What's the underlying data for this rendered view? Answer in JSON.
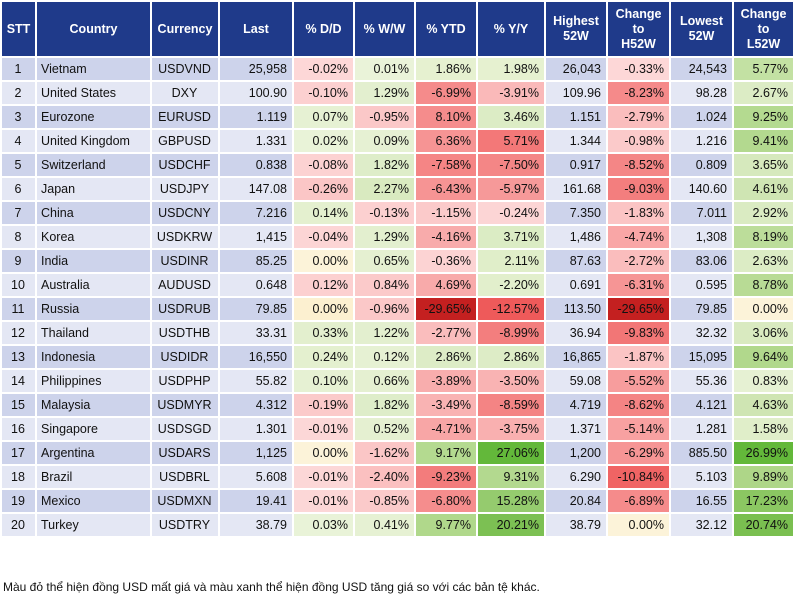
{
  "headers": {
    "stt": "STT",
    "country": "Country",
    "currency": "Currency",
    "last": "Last",
    "dd": "% D/D",
    "ww": "% W/W",
    "ytd": "% YTD",
    "yy": "% Y/Y",
    "highest_line1": "Highest",
    "highest_line2": "52W",
    "change_h_line1": "Change",
    "change_h_line2": "to",
    "change_h_line3": "H52W",
    "lowest_line1": "Lowest",
    "lowest_line2": "52W",
    "change_l_line1": "Change",
    "change_l_line2": "to",
    "change_l_line3": "L52W"
  },
  "colors": {
    "header_bg": "#1f3a8a",
    "row_odd": "#cdd3eb",
    "row_even": "#e4e7f4"
  },
  "rows": [
    {
      "stt": "1",
      "country": "Vietnam",
      "currency": "USDVND",
      "last": "25,958",
      "dd": "-0.02%",
      "ww": "0.01%",
      "ytd": "1.86%",
      "yy": "1.98%",
      "high": "26,043",
      "chg_h": "-0.33%",
      "low": "24,543",
      "chg_l": "5.77%",
      "bg": {
        "dd": "#fdd7d7",
        "ww": "#eaf3d9",
        "ytd": "#e6f1d0",
        "yy": "#e6f1d0",
        "chg_h": "#fdd7d7",
        "chg_l": "#c3e1a3"
      }
    },
    {
      "stt": "2",
      "country": "United States",
      "currency": "DXY",
      "last": "100.90",
      "dd": "-0.10%",
      "ww": "1.29%",
      "ytd": "-6.99%",
      "yy": "-3.91%",
      "high": "109.96",
      "chg_h": "-8.23%",
      "low": "98.28",
      "chg_l": "2.67%",
      "bg": {
        "dd": "#fcd0d0",
        "ww": "#e3efcf",
        "ytd": "#f58b8b",
        "yy": "#fab9b9",
        "chg_h": "#f58a8a",
        "chg_l": "#dcecc5"
      }
    },
    {
      "stt": "3",
      "country": "Eurozone",
      "currency": "EURUSD",
      "last": "1.119",
      "dd": "0.07%",
      "ww": "-0.95%",
      "ytd": "8.10%",
      "yy": "3.46%",
      "high": "1.151",
      "chg_h": "-2.79%",
      "low": "1.024",
      "chg_l": "9.25%",
      "bg": {
        "dd": "#e6f1d3",
        "ww": "#fbc8c8",
        "ytd": "#f58c8c",
        "yy": "#dcecc5",
        "chg_h": "#fabdbd",
        "chg_l": "#b4da90"
      }
    },
    {
      "stt": "4",
      "country": "United Kingdom",
      "currency": "GBPUSD",
      "last": "1.331",
      "dd": "0.02%",
      "ww": "0.09%",
      "ytd": "6.36%",
      "yy": "5.71%",
      "high": "1.344",
      "chg_h": "-0.98%",
      "low": "1.216",
      "chg_l": "9.41%",
      "bg": {
        "dd": "#e9f3d8",
        "ww": "#e6f1d3",
        "ytd": "#f69494",
        "yy": "#f37878",
        "chg_h": "#fbcaca",
        "chg_l": "#b3d98f"
      }
    },
    {
      "stt": "5",
      "country": "Switzerland",
      "currency": "USDCHF",
      "last": "0.838",
      "dd": "-0.08%",
      "ww": "1.82%",
      "ytd": "-7.58%",
      "yy": "-7.50%",
      "high": "0.917",
      "chg_h": "-8.52%",
      "low": "0.809",
      "chg_l": "3.65%",
      "bg": {
        "dd": "#fcd2d2",
        "ww": "#deedc9",
        "ytd": "#f58585",
        "yy": "#f48686",
        "chg_h": "#f48686",
        "chg_l": "#d6e9bd"
      }
    },
    {
      "stt": "6",
      "country": "Japan",
      "currency": "USDJPY",
      "last": "147.08",
      "dd": "-0.26%",
      "ww": "2.27%",
      "ytd": "-6.43%",
      "yy": "-5.97%",
      "high": "161.68",
      "chg_h": "-9.03%",
      "low": "140.60",
      "chg_l": "4.61%",
      "bg": {
        "dd": "#fbc6c6",
        "ww": "#d9eac0",
        "ytd": "#f69494",
        "yy": "#f69999",
        "chg_h": "#f37e7e",
        "chg_l": "#cfe5b3"
      }
    },
    {
      "stt": "7",
      "country": "China",
      "currency": "USDCNY",
      "last": "7.216",
      "dd": "0.14%",
      "ww": "-0.13%",
      "ytd": "-1.15%",
      "yy": "-0.24%",
      "high": "7.350",
      "chg_h": "-1.83%",
      "low": "7.011",
      "chg_l": "2.92%",
      "bg": {
        "dd": "#e4f0cf",
        "ww": "#fcd0d0",
        "ytd": "#fbcaca",
        "yy": "#fcd5d5",
        "chg_h": "#fbc4c4",
        "chg_l": "#daebc2"
      }
    },
    {
      "stt": "8",
      "country": "Korea",
      "currency": "USDKRW",
      "last": "1,415",
      "dd": "-0.04%",
      "ww": "1.29%",
      "ytd": "-4.16%",
      "yy": "3.71%",
      "high": "1,486",
      "chg_h": "-4.74%",
      "low": "1,308",
      "chg_l": "8.19%",
      "bg": {
        "dd": "#fcd5d5",
        "ww": "#e3efcf",
        "ytd": "#f8abab",
        "yy": "#dbecc4",
        "chg_h": "#f9a6a6",
        "chg_l": "#bcdd9a"
      }
    },
    {
      "stt": "9",
      "country": "India",
      "currency": "USDINR",
      "last": "85.25",
      "dd": "0.00%",
      "ww": "0.65%",
      "ytd": "-0.36%",
      "yy": "2.11%",
      "high": "87.63",
      "chg_h": "-2.72%",
      "low": "83.06",
      "chg_l": "2.63%",
      "bg": {
        "dd": "#fcf3d9",
        "ww": "#e5f0d1",
        "ytd": "#fcd3d3",
        "yy": "#e0eec9",
        "chg_h": "#fabdbd",
        "chg_l": "#dcecc5"
      }
    },
    {
      "stt": "10",
      "country": "Australia",
      "currency": "AUDUSD",
      "last": "0.648",
      "dd": "0.12%",
      "ww": "0.84%",
      "ytd": "4.69%",
      "yy": "-2.20%",
      "high": "0.691",
      "chg_h": "-6.31%",
      "low": "0.595",
      "chg_l": "8.78%",
      "bg": {
        "dd": "#fcd0d0",
        "ww": "#fbcaca",
        "ytd": "#f8aaaa",
        "yy": "#e2efcc",
        "chg_h": "#f69595",
        "chg_l": "#b8db95"
      }
    },
    {
      "stt": "11",
      "country": "Russia",
      "currency": "USDRUB",
      "last": "79.85",
      "dd": "0.00%",
      "ww": "-0.96%",
      "ytd": "-29.65%",
      "yy": "-12.57%",
      "high": "113.50",
      "chg_h": "-29.65%",
      "low": "79.85",
      "chg_l": "0.00%",
      "bg": {
        "dd": "#fcf0d0",
        "ww": "#fbc8c8",
        "ytd": "#c42020",
        "yy": "#ee5a5a",
        "chg_h": "#c42020",
        "chg_l": "#fcf3d9"
      }
    },
    {
      "stt": "12",
      "country": "Thailand",
      "currency": "USDTHB",
      "last": "33.31",
      "dd": "0.33%",
      "ww": "1.22%",
      "ytd": "-2.77%",
      "yy": "-8.99%",
      "high": "36.94",
      "chg_h": "-9.83%",
      "low": "32.32",
      "chg_l": "3.06%",
      "bg": {
        "dd": "#e3efce",
        "ww": "#e3efcf",
        "ytd": "#fabdbd",
        "yy": "#f37e7e",
        "chg_h": "#f27676",
        "chg_l": "#d9eac0"
      }
    },
    {
      "stt": "13",
      "country": "Indonesia",
      "currency": "USDIDR",
      "last": "16,550",
      "dd": "0.24%",
      "ww": "0.12%",
      "ytd": "2.86%",
      "yy": "2.86%",
      "high": "16,865",
      "chg_h": "-1.87%",
      "low": "15,095",
      "chg_l": "9.64%",
      "bg": {
        "dd": "#e4f0cf",
        "ww": "#e6f1d3",
        "ytd": "#ddecc6",
        "yy": "#ddecc6",
        "chg_h": "#fbc4c4",
        "chg_l": "#b1d88c"
      }
    },
    {
      "stt": "14",
      "country": "Philippines",
      "currency": "USDPHP",
      "last": "55.82",
      "dd": "0.10%",
      "ww": "0.66%",
      "ytd": "-3.89%",
      "yy": "-3.50%",
      "high": "59.08",
      "chg_h": "-5.52%",
      "low": "55.36",
      "chg_l": "0.83%",
      "bg": {
        "dd": "#e6f1d3",
        "ww": "#e5f0d1",
        "ytd": "#f8adad",
        "yy": "#f9b3b3",
        "chg_h": "#f79d9d",
        "chg_l": "#e6f1d3"
      }
    },
    {
      "stt": "15",
      "country": "Malaysia",
      "currency": "USDMYR",
      "last": "4.312",
      "dd": "-0.19%",
      "ww": "1.82%",
      "ytd": "-3.49%",
      "yy": "-8.59%",
      "high": "4.719",
      "chg_h": "-8.62%",
      "low": "4.121",
      "chg_l": "4.63%",
      "bg": {
        "dd": "#fbcaca",
        "ww": "#deedc9",
        "ytd": "#f9b3b3",
        "yy": "#f48484",
        "chg_h": "#f48484",
        "chg_l": "#cfe5b3"
      }
    },
    {
      "stt": "16",
      "country": "Singapore",
      "currency": "USDSGD",
      "last": "1.301",
      "dd": "-0.01%",
      "ww": "0.52%",
      "ytd": "-4.71%",
      "yy": "-3.75%",
      "high": "1.371",
      "chg_h": "-5.14%",
      "low": "1.281",
      "chg_l": "1.58%",
      "bg": {
        "dd": "#fcd7d7",
        "ww": "#e5f0d1",
        "ytd": "#f8a6a6",
        "yy": "#f9b0b0",
        "chg_h": "#f8a1a1",
        "chg_l": "#e0eec9"
      }
    },
    {
      "stt": "17",
      "country": "Argentina",
      "currency": "USDARS",
      "last": "1,125",
      "dd": "0.00%",
      "ww": "-1.62%",
      "ytd": "9.17%",
      "yy": "27.06%",
      "high": "1,200",
      "chg_h": "-6.29%",
      "low": "885.50",
      "chg_l": "26.99%",
      "bg": {
        "dd": "#fcf3d9",
        "ww": "#fbc6c6",
        "ytd": "#b4da90",
        "yy": "#63b83a",
        "chg_h": "#f69595",
        "chg_l": "#63b83a"
      }
    },
    {
      "stt": "18",
      "country": "Brazil",
      "currency": "USDBRL",
      "last": "5.608",
      "dd": "-0.01%",
      "ww": "-2.40%",
      "ytd": "-9.23%",
      "yy": "9.31%",
      "high": "6.290",
      "chg_h": "-10.84%",
      "low": "5.103",
      "chg_l": "9.89%",
      "bg": {
        "dd": "#fcd7d7",
        "ww": "#fbc0c0",
        "ytd": "#f37c7c",
        "yy": "#b3d98f",
        "chg_h": "#f06464",
        "chg_l": "#aed688"
      }
    },
    {
      "stt": "19",
      "country": "Mexico",
      "currency": "USDMXN",
      "last": "19.41",
      "dd": "-0.01%",
      "ww": "-0.85%",
      "ytd": "-6.80%",
      "yy": "15.28%",
      "high": "20.84",
      "chg_h": "-6.89%",
      "low": "16.55",
      "chg_l": "17.23%",
      "bg": {
        "dd": "#fcd7d7",
        "ww": "#fbcaca",
        "ytd": "#f58d8d",
        "yy": "#95cb6e",
        "chg_h": "#f58b8b",
        "chg_l": "#8bc762"
      }
    },
    {
      "stt": "20",
      "country": "Turkey",
      "currency": "USDTRY",
      "last": "38.79",
      "dd": "0.03%",
      "ww": "0.41%",
      "ytd": "9.77%",
      "yy": "20.21%",
      "high": "38.79",
      "chg_h": "0.00%",
      "low": "32.12",
      "chg_l": "20.74%",
      "bg": {
        "dd": "#e9f3d8",
        "ww": "#e6f1d3",
        "ytd": "#b0d88b",
        "yy": "#7cc053",
        "chg_h": "#fcf3d9",
        "chg_l": "#7abf50"
      }
    }
  ],
  "note": "Màu đỏ thể hiện đồng USD mất giá và màu xanh thể hiện đồng USD tăng giá so với các bản tệ khác."
}
